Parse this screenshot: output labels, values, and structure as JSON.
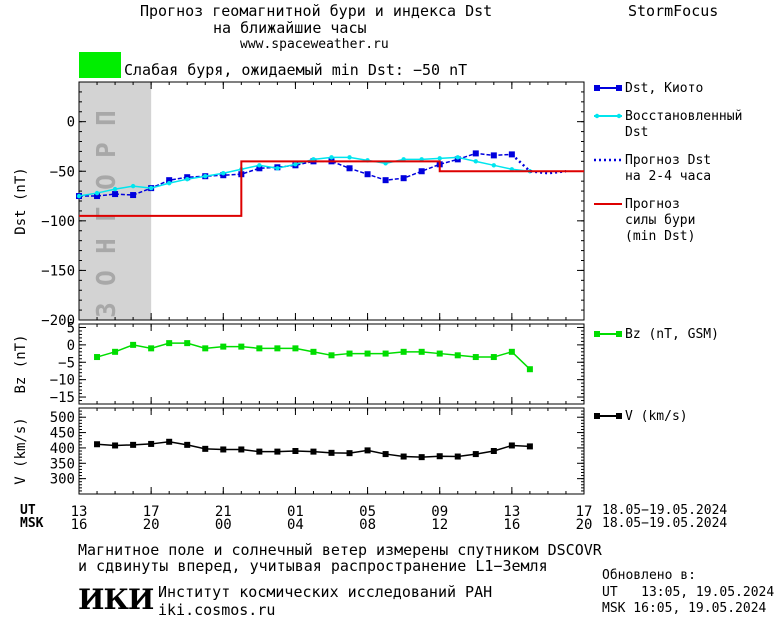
{
  "header": {
    "title_line1": "Прогноз геомагнитной бури и индекса Dst",
    "title_line2": "на ближайшие часы",
    "website": "www.spaceweather.ru",
    "brand": "StormFocus",
    "status_text": "Слабая буря, ожидаемый min Dst: −50 nT",
    "status_color": "#00ee00"
  },
  "colors": {
    "dst_kyoto": "#0000dd",
    "restored": "#00e5ee",
    "forecast": "#0000dd",
    "storm_force": "#dd0000",
    "bz": "#00dd00",
    "v": "#000000",
    "forecast_band": "#d3d3d3"
  },
  "chart_data": [
    {
      "id": "dst",
      "type": "line",
      "ylabel": "Dst (nT)",
      "ylim": [
        -200,
        40
      ],
      "yticks": [
        0,
        -50,
        -100,
        -150,
        -200
      ],
      "ytick_labels": [
        "0",
        "−50",
        "−100",
        "−150",
        "−200"
      ],
      "forecast_band_label": "ПРОГНОЗ",
      "forecast_band_x": [
        13,
        17
      ],
      "series": [
        {
          "name": "Dst, Киото",
          "key": "dst_kyoto",
          "marker": "square",
          "x": [
            13.0,
            14.0,
            15.0,
            16.0,
            17.0,
            18.0,
            19.0,
            20.0,
            21.0,
            22.0,
            23.0,
            24.0,
            25.0,
            26.0,
            27.0,
            28.0,
            29.0,
            30.0,
            31.0,
            32.0,
            33.0,
            34.0,
            35.0,
            36.0,
            37.0
          ],
          "y": [
            -75,
            -75,
            -73,
            -74,
            -67,
            -59,
            -56,
            -55,
            -54,
            -53,
            -47,
            -46,
            -44,
            -40,
            -40,
            -47,
            -53,
            -59,
            -57,
            -50,
            -43,
            -38,
            -32,
            -34,
            -33
          ]
        },
        {
          "name": "Восстановленный Dst",
          "key": "restored",
          "marker": "dot",
          "x": [
            13.0,
            14.0,
            15.0,
            16.0,
            17.0,
            18.0,
            19.0,
            20.0,
            21.0,
            22.0,
            23.0,
            24.0,
            25.0,
            26.0,
            27.0,
            28.0,
            29.0,
            30.0,
            31.0,
            32.0,
            33.0,
            34.0,
            35.0,
            36.0,
            37.0,
            38.0
          ],
          "y": [
            -75,
            -72,
            -68,
            -65,
            -67,
            -62,
            -58,
            -55,
            -52,
            -48,
            -44,
            -47,
            -43,
            -38,
            -36,
            -36,
            -39,
            -42,
            -38,
            -38,
            -37,
            -36,
            -40,
            -44,
            -48,
            -50
          ]
        },
        {
          "name": "Прогноз Dst на 2-4 часа",
          "key": "forecast",
          "style": "dotted",
          "x": [
            37.0,
            38.0,
            39.0,
            40.0
          ],
          "y": [
            -33,
            -50,
            -52,
            -50
          ]
        },
        {
          "name": "Прогноз силы бури (min Dst)",
          "key": "storm_force",
          "style": "step",
          "x": [
            13,
            21,
            21,
            22,
            22,
            29,
            29,
            33,
            33,
            41
          ],
          "y": [
            -95,
            -95,
            -95,
            -95,
            -40,
            -40,
            -40,
            -40,
            -50,
            -50
          ]
        }
      ],
      "legend": [
        {
          "key": "dst_kyoto",
          "lines": [
            "Dst, Киото"
          ]
        },
        {
          "key": "restored",
          "lines": [
            "Восстановленный",
            "Dst"
          ]
        },
        {
          "key": "forecast",
          "lines": [
            "Прогноз Dst",
            "на 2-4 часа"
          ]
        },
        {
          "key": "storm_force",
          "lines": [
            "Прогноз",
            "силы бури",
            "(min Dst)"
          ]
        }
      ]
    },
    {
      "id": "bz",
      "type": "line",
      "ylabel": "Bz (nT)",
      "ylim": [
        -17,
        6
      ],
      "yticks": [
        5,
        0,
        -5,
        -10,
        -15
      ],
      "ytick_labels": [
        "5",
        "0",
        "−5",
        "−10",
        "−15"
      ],
      "series": [
        {
          "name": "Bz (nT, GSM)",
          "key": "bz",
          "marker": "square",
          "x": [
            14.0,
            15.0,
            16.0,
            17.0,
            18.0,
            19.0,
            20.0,
            21.0,
            22.0,
            23.0,
            24.0,
            25.0,
            26.0,
            27.0,
            28.0,
            29.0,
            30.0,
            31.0,
            32.0,
            33.0,
            34.0,
            35.0,
            36.0,
            37.0,
            38.0
          ],
          "y": [
            -3.5,
            -2,
            0,
            -1,
            0.5,
            0.5,
            -1,
            -0.5,
            -0.5,
            -1,
            -1,
            -1,
            -2,
            -3,
            -2.5,
            -2.5,
            -2.5,
            -2,
            -2,
            -2.5,
            -3,
            -3.5,
            -3.5,
            -2,
            -7
          ]
        }
      ],
      "legend": [
        {
          "key": "bz",
          "lines": [
            "Bz (nT, GSM)"
          ]
        }
      ]
    },
    {
      "id": "v",
      "type": "line",
      "ylabel": "V (km/s)",
      "ylim": [
        250,
        530
      ],
      "yticks": [
        500,
        450,
        400,
        350,
        300
      ],
      "ytick_labels": [
        "500",
        "450",
        "400",
        "350",
        "300"
      ],
      "series": [
        {
          "name": "V (km/s)",
          "key": "v",
          "marker": "square",
          "x": [
            14.0,
            15.0,
            16.0,
            17.0,
            18.0,
            19.0,
            20.0,
            21.0,
            22.0,
            23.0,
            24.0,
            25.0,
            26.0,
            27.0,
            28.0,
            29.0,
            30.0,
            31.0,
            32.0,
            33.0,
            34.0,
            35.0,
            36.0,
            37.0,
            38.0
          ],
          "y": [
            412,
            408,
            410,
            413,
            420,
            410,
            397,
            395,
            395,
            388,
            388,
            390,
            388,
            384,
            383,
            392,
            380,
            372,
            370,
            373,
            372,
            380,
            390,
            408,
            405
          ]
        }
      ],
      "legend": [
        {
          "key": "v",
          "lines": [
            "V (km/s)"
          ]
        }
      ]
    }
  ],
  "time_axis": {
    "ut_label": "UT",
    "msk_label": "MSK",
    "ticks_x": [
      13,
      17,
      21,
      25,
      29,
      33,
      37,
      41
    ],
    "ut_ticks": [
      "13",
      "17",
      "21",
      "01",
      "05",
      "09",
      "13",
      "17"
    ],
    "msk_ticks": [
      "16",
      "20",
      "00",
      "04",
      "08",
      "12",
      "16",
      "20"
    ],
    "ut_date_range": "18.05−19.05.2024",
    "msk_date_range": "18.05−19.05.2024",
    "xlim": [
      13,
      41
    ]
  },
  "footer": {
    "note_line1": "Магнитное поле и солнечный ветер измерены спутником DSCOVR",
    "note_line2": "и сдвинуты вперед, учитывая распространение L1−Земля",
    "logo_text": "ИКИ",
    "institute": "Институт космических исследований РАН",
    "institute_site": "iki.cosmos.ru",
    "updated_label": "Обновлено в:",
    "updated_ut": "UT   13:05, 19.05.2024",
    "updated_msk": "MSK 16:05, 19.05.2024"
  }
}
